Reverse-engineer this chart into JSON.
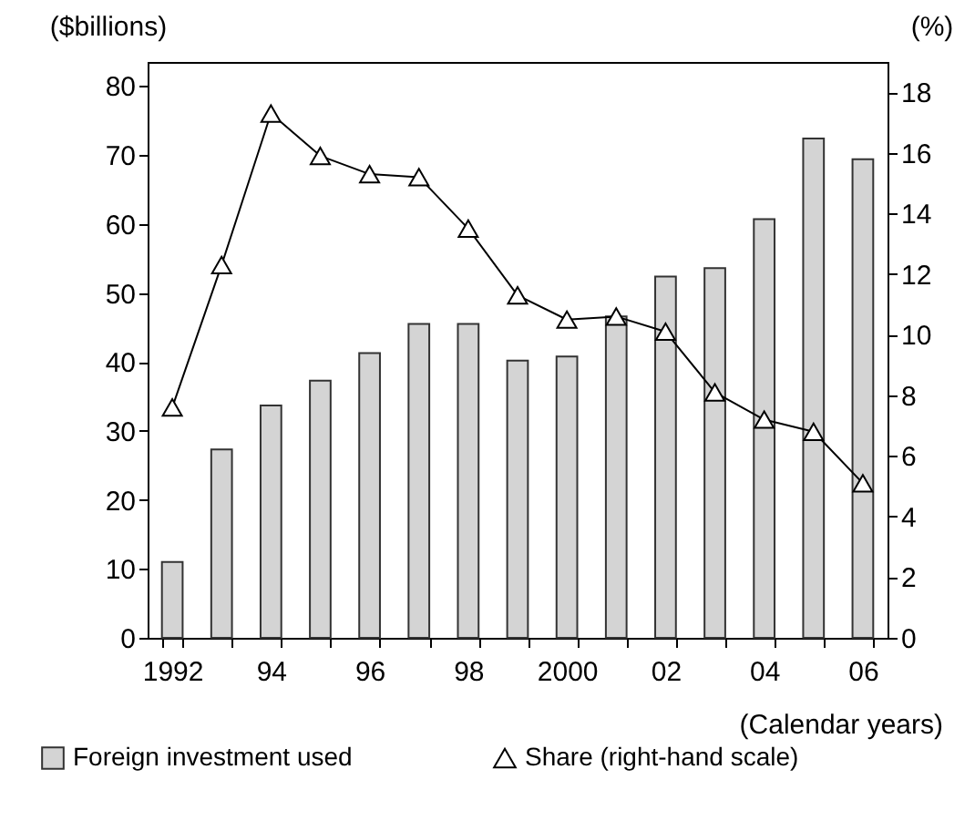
{
  "chart_data": {
    "type": "bar",
    "ylabel": "($billions)",
    "y2label": "(%)",
    "xlabel": "(Calendar years)",
    "categories": [
      "1992",
      null,
      "94",
      null,
      "96",
      null,
      "98",
      null,
      "2000",
      null,
      "02",
      null,
      "04",
      null,
      "06"
    ],
    "series": [
      {
        "name": "Foreign investment used",
        "type": "bar",
        "color": "#d4d4d4",
        "values": [
          11,
          27.3,
          33.7,
          37.3,
          41.3,
          45.5,
          45.5,
          40.2,
          40.8,
          46.6,
          52.4,
          53.6,
          60.7,
          72.4,
          69.4
        ]
      },
      {
        "name": "Share (right-hand scale)",
        "type": "line",
        "axis": "y2",
        "marker": "triangle",
        "color": "#000000",
        "values": [
          7.6,
          12.3,
          17.3,
          15.9,
          15.3,
          15.2,
          13.5,
          11.3,
          10.5,
          10.6,
          10.1,
          8.1,
          7.2,
          6.8,
          5.1
        ]
      }
    ],
    "ylim": [
      0,
      83.5
    ],
    "yticks": [
      0,
      10,
      20,
      30,
      40,
      50,
      60,
      70,
      80
    ],
    "y2lim": [
      0,
      19
    ],
    "y2ticks": [
      0,
      2,
      4,
      6,
      8,
      10,
      12,
      14,
      16,
      18
    ],
    "legend": "bottom"
  }
}
